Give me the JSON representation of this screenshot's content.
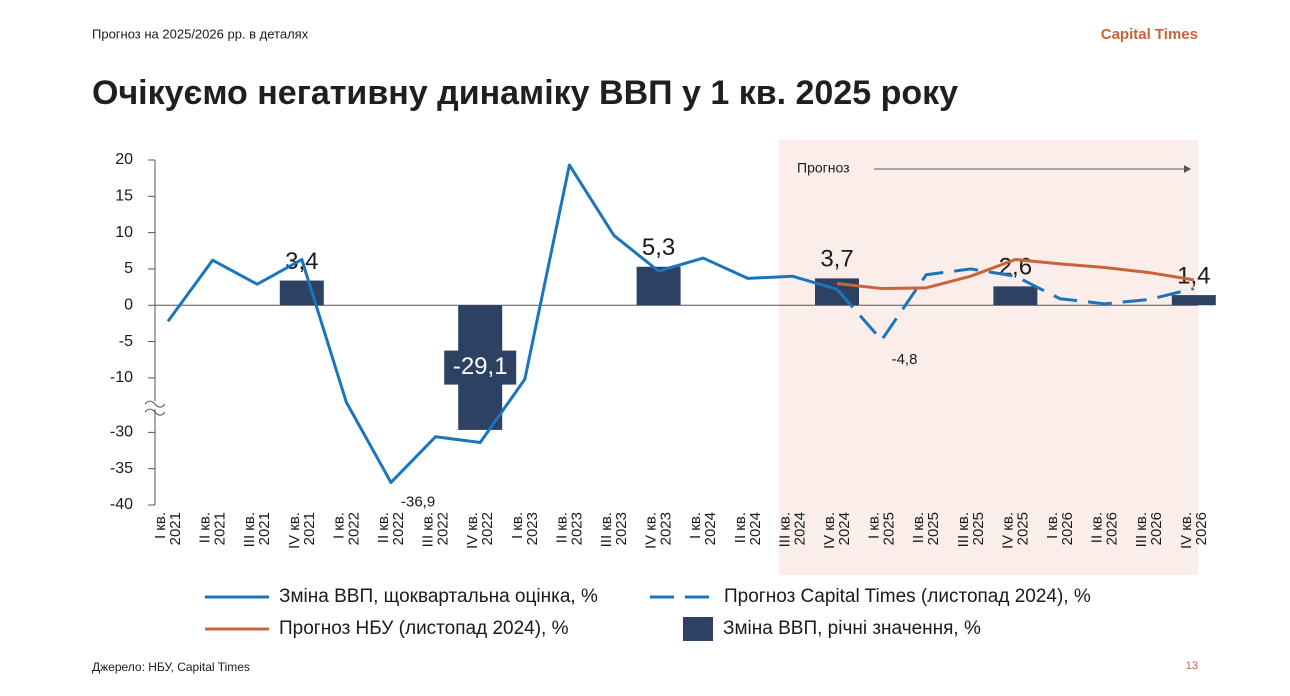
{
  "header": {
    "subtitle": "Прогноз на 2025/2026 рр. в деталях",
    "brand": "Capital Times",
    "title": "Очікуємо негативну динаміку ВВП у 1 кв. 2025 року"
  },
  "footer": {
    "source": "Джерело: НБУ, Capital Times",
    "page": "13"
  },
  "chart_data": {
    "type": "line",
    "axis_break": true,
    "forecast_label": "Прогноз",
    "categories": [
      [
        "I кв.",
        "2021"
      ],
      [
        "II кв.",
        "2021"
      ],
      [
        "III кв.",
        "2021"
      ],
      [
        "IV кв.",
        "2021"
      ],
      [
        "I кв.",
        "2022"
      ],
      [
        "II кв.",
        "2022"
      ],
      [
        "III кв.",
        "2022"
      ],
      [
        "IV кв.",
        "2022"
      ],
      [
        "I кв.",
        "2023"
      ],
      [
        "II кв.",
        "2023"
      ],
      [
        "III кв.",
        "2023"
      ],
      [
        "IV кв.",
        "2023"
      ],
      [
        "I кв.",
        "2024"
      ],
      [
        "II кв.",
        "2024"
      ],
      [
        "III кв.",
        "2024"
      ],
      [
        "IV кв.",
        "2024"
      ],
      [
        "I кв.",
        "2025"
      ],
      [
        "II кв.",
        "2025"
      ],
      [
        "III кв.",
        "2025"
      ],
      [
        "IV кв.",
        "2025"
      ],
      [
        "I кв.",
        "2026"
      ],
      [
        "II кв.",
        "2026"
      ],
      [
        "III кв.",
        "2026"
      ],
      [
        "IV кв.",
        "2026"
      ]
    ],
    "ylim": [
      -40,
      20
    ],
    "yticks": [
      20,
      15,
      10,
      5,
      0,
      -5,
      -10,
      -30,
      -35,
      -40
    ],
    "series": [
      {
        "name": "Зміна ВВП, щоквартальна оцінка, %",
        "type": "line",
        "style": "solid",
        "color": "#1a75bc",
        "values": [
          -2.2,
          6.2,
          2.9,
          6.3,
          -19,
          -36.9,
          -30.6,
          -31.4,
          -10.5,
          19.3,
          9.6,
          4.7,
          6.5,
          3.7,
          4.0,
          2.2,
          null,
          null,
          null,
          null,
          null,
          null,
          null,
          null
        ],
        "value_labels": [
          null,
          null,
          null,
          null,
          null,
          "-36,9",
          null,
          null,
          null,
          null,
          null,
          null,
          null,
          null,
          null,
          null,
          null,
          null,
          null,
          null,
          null,
          null,
          null,
          null
        ]
      },
      {
        "name": "Прогноз Capital Times (листопад 2024), %",
        "type": "line",
        "style": "dashed",
        "color": "#1a75bc",
        "values": [
          null,
          null,
          null,
          null,
          null,
          null,
          null,
          null,
          null,
          null,
          null,
          null,
          null,
          null,
          null,
          2.2,
          -4.8,
          4.2,
          5.0,
          4.0,
          0.9,
          0.2,
          0.8,
          2.3
        ],
        "value_labels": [
          null,
          null,
          null,
          null,
          null,
          null,
          null,
          null,
          null,
          null,
          null,
          null,
          null,
          null,
          null,
          null,
          "-4,8",
          null,
          null,
          null,
          null,
          null,
          null,
          null
        ]
      },
      {
        "name": "Прогноз НБУ (листопад 2024), %",
        "type": "line",
        "style": "solid",
        "color": "#c8643c",
        "values": [
          null,
          null,
          null,
          null,
          null,
          null,
          null,
          null,
          null,
          null,
          null,
          null,
          null,
          null,
          null,
          3.0,
          2.3,
          2.4,
          4.0,
          6.3,
          5.7,
          5.2,
          4.5,
          3.5
        ]
      },
      {
        "name": "Зміна ВВП, річні значення, %",
        "type": "bar",
        "color": "#2d4262",
        "values": [
          null,
          null,
          null,
          3.4,
          null,
          null,
          null,
          -29.1,
          null,
          null,
          null,
          5.3,
          null,
          null,
          null,
          3.7,
          null,
          null,
          null,
          2.6,
          null,
          null,
          null,
          1.4
        ],
        "value_labels": [
          null,
          null,
          null,
          "3,4",
          null,
          null,
          null,
          "-29,1",
          null,
          null,
          null,
          "5,3",
          null,
          null,
          null,
          "3,7",
          null,
          null,
          null,
          "2,6",
          null,
          null,
          null,
          "1,4"
        ]
      }
    ]
  }
}
